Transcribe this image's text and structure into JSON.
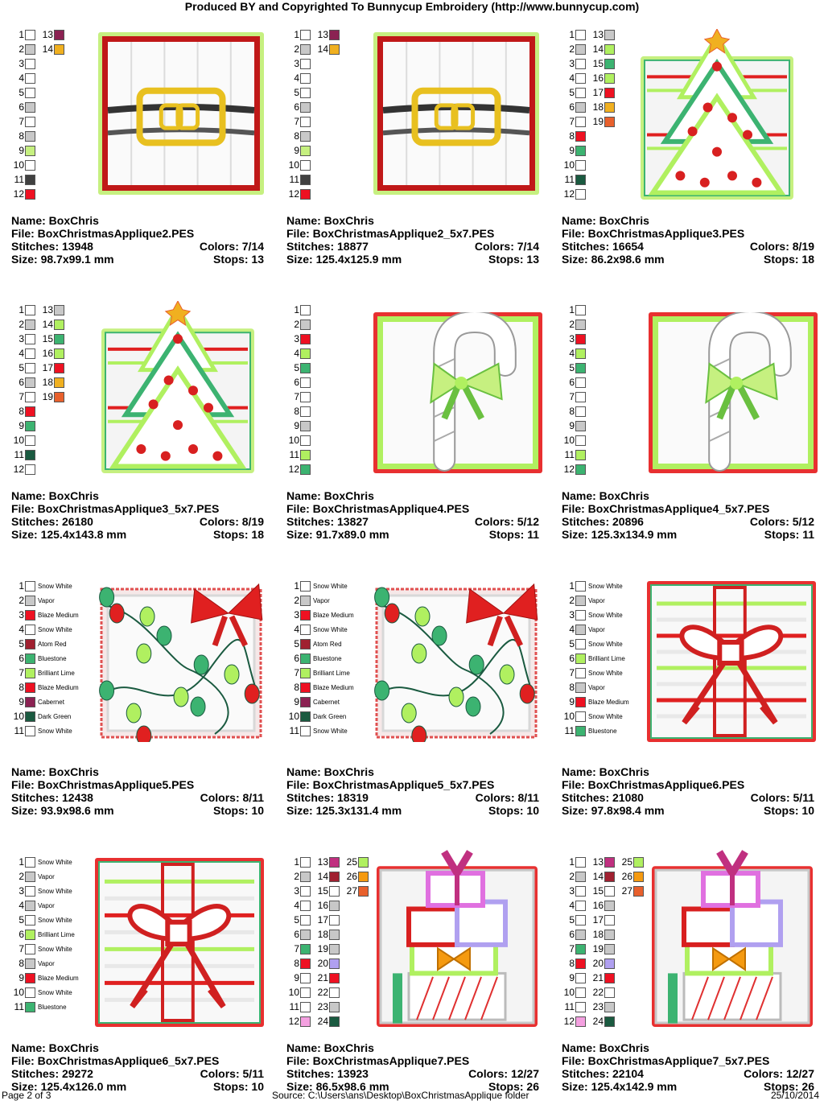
{
  "header": "Produced BY and Copyrighted To Bunnycup Embroidery (http://www.bunnycup.com)",
  "footer": {
    "page": "Page 2 of 3",
    "source": "Source: C:\\Users\\ans\\Desktop\\BoxChristmasApplique folder",
    "date": "25/10/2014"
  },
  "labels": {
    "name": "Name:",
    "file": "File:",
    "stitches": "Stitches:",
    "size": "Size:",
    "colors": "Colors:",
    "stops": "Stops:"
  },
  "designs": [
    {
      "name": "BoxChris",
      "file": "BoxChristmasApplique2.PES",
      "stitches": "13948",
      "size": "98.7x99.1 mm",
      "colors": "7/14",
      "stops": "13",
      "motif": "belt",
      "threads": [
        [
          "1",
          "#ffffff"
        ],
        [
          "2",
          "#c8c8c8"
        ],
        [
          "3",
          "#ffffff"
        ],
        [
          "4",
          "#ffffff"
        ],
        [
          "5",
          "#ffffff"
        ],
        [
          "6",
          "#c8c8c8"
        ],
        [
          "7",
          "#ffffff"
        ],
        [
          "8",
          "#c8c8c8"
        ],
        [
          "9",
          "#c6f080"
        ],
        [
          "10",
          "#ffffff"
        ],
        [
          "11",
          "#404040"
        ],
        [
          "12",
          "#ee1122"
        ],
        [
          "13",
          "#8b2252"
        ],
        [
          "14",
          "#f0b020"
        ]
      ]
    },
    {
      "name": "BoxChris",
      "file": "BoxChristmasApplique2_5x7.PES",
      "stitches": "18877",
      "size": "125.4x125.9 mm",
      "colors": "7/14",
      "stops": "13",
      "motif": "belt",
      "threads": [
        [
          "1",
          "#ffffff"
        ],
        [
          "2",
          "#c8c8c8"
        ],
        [
          "3",
          "#ffffff"
        ],
        [
          "4",
          "#ffffff"
        ],
        [
          "5",
          "#ffffff"
        ],
        [
          "6",
          "#c8c8c8"
        ],
        [
          "7",
          "#ffffff"
        ],
        [
          "8",
          "#c8c8c8"
        ],
        [
          "9",
          "#c6f080"
        ],
        [
          "10",
          "#ffffff"
        ],
        [
          "11",
          "#404040"
        ],
        [
          "12",
          "#ee1122"
        ],
        [
          "13",
          "#8b2252"
        ],
        [
          "14",
          "#f0b020"
        ]
      ]
    },
    {
      "name": "BoxChris",
      "file": "BoxChristmasApplique3.PES",
      "stitches": "16654",
      "size": "86.2x98.6 mm",
      "colors": "8/19",
      "stops": "18",
      "motif": "tree",
      "threads": [
        [
          "1",
          "#ffffff"
        ],
        [
          "2",
          "#c8c8c8"
        ],
        [
          "3",
          "#ffffff"
        ],
        [
          "4",
          "#ffffff"
        ],
        [
          "5",
          "#ffffff"
        ],
        [
          "6",
          "#c8c8c8"
        ],
        [
          "7",
          "#ffffff"
        ],
        [
          "8",
          "#ee1122"
        ],
        [
          "9",
          "#3cb371"
        ],
        [
          "10",
          "#ffffff"
        ],
        [
          "11",
          "#1a5a40"
        ],
        [
          "12",
          "#ffffff"
        ],
        [
          "13",
          "#c8c8c8"
        ],
        [
          "14",
          "#b0f060"
        ],
        [
          "15",
          "#3cb371"
        ],
        [
          "16",
          "#b0f060"
        ],
        [
          "17",
          "#ee1122"
        ],
        [
          "18",
          "#f0b020"
        ],
        [
          "19",
          "#e8602c"
        ]
      ]
    },
    {
      "name": "BoxChris",
      "file": "BoxChristmasApplique3_5x7.PES",
      "stitches": "26180",
      "size": "125.4x143.8 mm",
      "colors": "8/19",
      "stops": "18",
      "motif": "tree",
      "threads": [
        [
          "1",
          "#ffffff"
        ],
        [
          "2",
          "#c8c8c8"
        ],
        [
          "3",
          "#ffffff"
        ],
        [
          "4",
          "#ffffff"
        ],
        [
          "5",
          "#ffffff"
        ],
        [
          "6",
          "#c8c8c8"
        ],
        [
          "7",
          "#ffffff"
        ],
        [
          "8",
          "#ee1122"
        ],
        [
          "9",
          "#3cb371"
        ],
        [
          "10",
          "#ffffff"
        ],
        [
          "11",
          "#1a5a40"
        ],
        [
          "12",
          "#ffffff"
        ],
        [
          "13",
          "#c8c8c8"
        ],
        [
          "14",
          "#b0f060"
        ],
        [
          "15",
          "#3cb371"
        ],
        [
          "16",
          "#b0f060"
        ],
        [
          "17",
          "#ee1122"
        ],
        [
          "18",
          "#f0b020"
        ],
        [
          "19",
          "#e8602c"
        ]
      ]
    },
    {
      "name": "BoxChris",
      "file": "BoxChristmasApplique4.PES",
      "stitches": "13827",
      "size": "91.7x89.0 mm",
      "colors": "5/12",
      "stops": "11",
      "motif": "cane",
      "threads": [
        [
          "1",
          "#ffffff"
        ],
        [
          "2",
          "#c8c8c8"
        ],
        [
          "3",
          "#ee1122"
        ],
        [
          "4",
          "#b0f060"
        ],
        [
          "5",
          "#3cb371"
        ],
        [
          "6",
          "#ffffff"
        ],
        [
          "7",
          "#ffffff"
        ],
        [
          "8",
          "#ffffff"
        ],
        [
          "9",
          "#c8c8c8"
        ],
        [
          "10",
          "#ffffff"
        ],
        [
          "11",
          "#b0f060"
        ],
        [
          "12",
          "#3cb371"
        ]
      ]
    },
    {
      "name": "BoxChris",
      "file": "BoxChristmasApplique4_5x7.PES",
      "stitches": "20896",
      "size": "125.3x134.9 mm",
      "colors": "5/12",
      "stops": "11",
      "motif": "cane",
      "threads": [
        [
          "1",
          "#ffffff"
        ],
        [
          "2",
          "#c8c8c8"
        ],
        [
          "3",
          "#ee1122"
        ],
        [
          "4",
          "#b0f060"
        ],
        [
          "5",
          "#3cb371"
        ],
        [
          "6",
          "#ffffff"
        ],
        [
          "7",
          "#ffffff"
        ],
        [
          "8",
          "#ffffff"
        ],
        [
          "9",
          "#c8c8c8"
        ],
        [
          "10",
          "#ffffff"
        ],
        [
          "11",
          "#b0f060"
        ],
        [
          "12",
          "#3cb371"
        ]
      ]
    },
    {
      "name": "BoxChris",
      "file": "BoxChristmasApplique5.PES",
      "stitches": "12438",
      "size": "93.9x98.6 mm",
      "colors": "8/11",
      "stops": "10",
      "motif": "lights",
      "threads": [
        [
          "1",
          "#ffffff",
          "Snow White"
        ],
        [
          "2",
          "#c8c8c8",
          "Vapor"
        ],
        [
          "3",
          "#ee1122",
          "Blaze Medium"
        ],
        [
          "4",
          "#ffffff",
          "Snow White"
        ],
        [
          "5",
          "#a02030",
          "Atom Red"
        ],
        [
          "6",
          "#3cb371",
          "Bluestone"
        ],
        [
          "7",
          "#b0f060",
          "Brilliant Lime"
        ],
        [
          "8",
          "#ee1122",
          "Blaze Medium"
        ],
        [
          "9",
          "#8b2252",
          "Cabernet"
        ],
        [
          "10",
          "#1a5a40",
          "Dark Green"
        ],
        [
          "11",
          "#ffffff",
          "Snow White"
        ]
      ]
    },
    {
      "name": "BoxChris",
      "file": "BoxChristmasApplique5_5x7.PES",
      "stitches": "18319",
      "size": "125.3x131.4 mm",
      "colors": "8/11",
      "stops": "10",
      "motif": "lights",
      "threads": [
        [
          "1",
          "#ffffff",
          "Snow White"
        ],
        [
          "2",
          "#c8c8c8",
          "Vapor"
        ],
        [
          "3",
          "#ee1122",
          "Blaze Medium"
        ],
        [
          "4",
          "#ffffff",
          "Snow White"
        ],
        [
          "5",
          "#a02030",
          "Atom Red"
        ],
        [
          "6",
          "#3cb371",
          "Bluestone"
        ],
        [
          "7",
          "#b0f060",
          "Brilliant Lime"
        ],
        [
          "8",
          "#ee1122",
          "Blaze Medium"
        ],
        [
          "9",
          "#8b2252",
          "Cabernet"
        ],
        [
          "10",
          "#1a5a40",
          "Dark Green"
        ],
        [
          "11",
          "#ffffff",
          "Snow White"
        ]
      ]
    },
    {
      "name": "BoxChris",
      "file": "BoxChristmasApplique6.PES",
      "stitches": "21080",
      "size": "97.8x98.4 mm",
      "colors": "5/11",
      "stops": "10",
      "motif": "bow",
      "threads": [
        [
          "1",
          "#ffffff",
          "Snow White"
        ],
        [
          "2",
          "#c8c8c8",
          "Vapor"
        ],
        [
          "3",
          "#ffffff",
          "Snow White"
        ],
        [
          "4",
          "#c8c8c8",
          "Vapor"
        ],
        [
          "5",
          "#ffffff",
          "Snow White"
        ],
        [
          "6",
          "#b0f060",
          "Brilliant Lime"
        ],
        [
          "7",
          "#ffffff",
          "Snow White"
        ],
        [
          "8",
          "#c8c8c8",
          "Vapor"
        ],
        [
          "9",
          "#ee1122",
          "Blaze Medium"
        ],
        [
          "10",
          "#ffffff",
          "Snow White"
        ],
        [
          "11",
          "#3cb371",
          "Bluestone"
        ]
      ]
    },
    {
      "name": "BoxChris",
      "file": "BoxChristmasApplique6_5x7.PES",
      "stitches": "29272",
      "size": "125.4x126.0 mm",
      "colors": "5/11",
      "stops": "10",
      "motif": "bow",
      "threads": [
        [
          "1",
          "#ffffff",
          "Snow White"
        ],
        [
          "2",
          "#c8c8c8",
          "Vapor"
        ],
        [
          "3",
          "#ffffff",
          "Snow White"
        ],
        [
          "4",
          "#c8c8c8",
          "Vapor"
        ],
        [
          "5",
          "#ffffff",
          "Snow White"
        ],
        [
          "6",
          "#b0f060",
          "Brilliant Lime"
        ],
        [
          "7",
          "#ffffff",
          "Snow White"
        ],
        [
          "8",
          "#c8c8c8",
          "Vapor"
        ],
        [
          "9",
          "#ee1122",
          "Blaze Medium"
        ],
        [
          "10",
          "#ffffff",
          "Snow White"
        ],
        [
          "11",
          "#3cb371",
          "Bluestone"
        ]
      ]
    },
    {
      "name": "BoxChris",
      "file": "BoxChristmasApplique7.PES",
      "stitches": "13923",
      "size": "86.5x98.6 mm",
      "colors": "12/27",
      "stops": "26",
      "motif": "gifts",
      "threads": [
        [
          "1",
          "#ffffff"
        ],
        [
          "2",
          "#c8c8c8"
        ],
        [
          "3",
          "#ffffff"
        ],
        [
          "4",
          "#ffffff"
        ],
        [
          "5",
          "#ffffff"
        ],
        [
          "6",
          "#c8c8c8"
        ],
        [
          "7",
          "#3cb371"
        ],
        [
          "8",
          "#ee1122"
        ],
        [
          "9",
          "#ffffff"
        ],
        [
          "10",
          "#ffffff"
        ],
        [
          "11",
          "#ffffff"
        ],
        [
          "12",
          "#f4a0e0"
        ],
        [
          "13",
          "#c03080"
        ],
        [
          "14",
          "#a02030"
        ],
        [
          "15",
          "#ffffff"
        ],
        [
          "16",
          "#c8c8c8"
        ],
        [
          "17",
          "#ffffff"
        ],
        [
          "18",
          "#c8c8c8"
        ],
        [
          "19",
          "#c8c8c8"
        ],
        [
          "20",
          "#b0a0f0"
        ],
        [
          "21",
          "#ee1122"
        ],
        [
          "22",
          "#ffffff"
        ],
        [
          "23",
          "#c8c8c8"
        ],
        [
          "24",
          "#1a5a40"
        ],
        [
          "25",
          "#b0f060"
        ],
        [
          "26",
          "#f59a10"
        ],
        [
          "27",
          "#e8602c"
        ]
      ]
    },
    {
      "name": "BoxChris",
      "file": "BoxChristmasApplique7_5x7.PES",
      "stitches": "22104",
      "size": "125.4x142.9 mm",
      "colors": "12/27",
      "stops": "26",
      "motif": "gifts",
      "threads": [
        [
          "1",
          "#ffffff"
        ],
        [
          "2",
          "#c8c8c8"
        ],
        [
          "3",
          "#ffffff"
        ],
        [
          "4",
          "#ffffff"
        ],
        [
          "5",
          "#ffffff"
        ],
        [
          "6",
          "#c8c8c8"
        ],
        [
          "7",
          "#3cb371"
        ],
        [
          "8",
          "#ee1122"
        ],
        [
          "9",
          "#ffffff"
        ],
        [
          "10",
          "#ffffff"
        ],
        [
          "11",
          "#ffffff"
        ],
        [
          "12",
          "#f4a0e0"
        ],
        [
          "13",
          "#c03080"
        ],
        [
          "14",
          "#a02030"
        ],
        [
          "15",
          "#ffffff"
        ],
        [
          "16",
          "#c8c8c8"
        ],
        [
          "17",
          "#ffffff"
        ],
        [
          "18",
          "#c8c8c8"
        ],
        [
          "19",
          "#c8c8c8"
        ],
        [
          "20",
          "#b0a0f0"
        ],
        [
          "21",
          "#ee1122"
        ],
        [
          "22",
          "#ffffff"
        ],
        [
          "23",
          "#c8c8c8"
        ],
        [
          "24",
          "#1a5a40"
        ],
        [
          "25",
          "#b0f060"
        ],
        [
          "26",
          "#f59a10"
        ],
        [
          "27",
          "#e8602c"
        ]
      ]
    }
  ]
}
